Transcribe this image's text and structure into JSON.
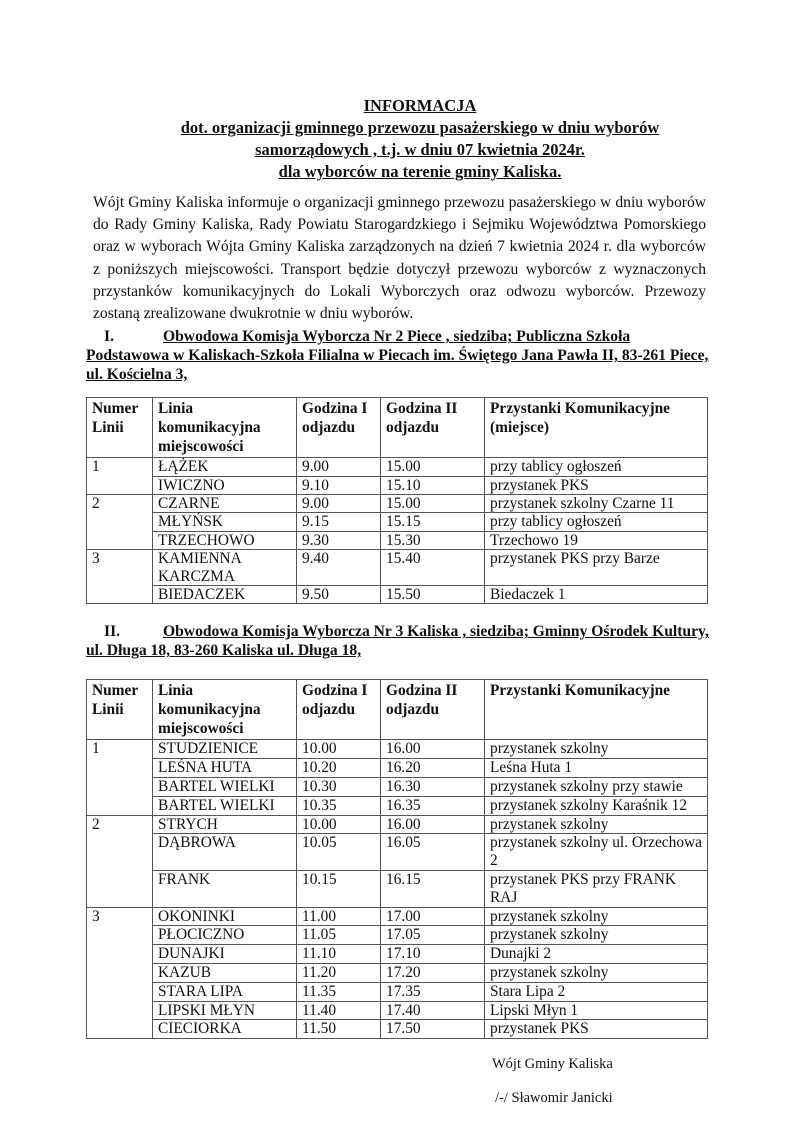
{
  "title": {
    "line1": "INFORMACJA",
    "line2": "dot. organizacji gminnego  przewozu pasażerskiego w dniu wyborów",
    "line3": "samorządowych , t.j. w dniu 07 kwietnia 2024r.",
    "line4": "dla wyborców na terenie gminy Kaliska."
  },
  "intro": "Wójt Gminy Kaliska informuje o organizacji gminnego  przewozu pasażerskiego w dniu wyborów do Rady Gminy Kaliska, Rady Powiatu Starogardzkiego i Sejmiku Województwa Pomorskiego oraz w wyborach Wójta Gminy Kaliska zarządzonych na dzień 7 kwietnia 2024 r. dla wyborców z poniższych miejscowości. Transport będzie dotyczył przewozu wyborców z wyznaczonych przystanków komunikacyjnych do Lokali Wyborczych oraz odwozu wyborców. Przewozy zostaną zrealizowane dwukrotnie w dniu wyborów.",
  "sections": [
    {
      "numeral": "I.",
      "heading": "Obwodowa Komisja Wyborcza Nr 2 Piece , siedziba; Publiczna Szkoła Podstawowa w Kaliskach-Szkoła Filialna w Piecach im. Świętego Jana Pawła II,  83-261 Piece, ul. Kościelna 3,",
      "headers": [
        "Numer Linii",
        "Linia komunikacyjna miejscowości",
        "Godzina I odjazdu",
        "Godzina II odjazdu",
        "Przystanki Komunikacyjne (miejsce)"
      ],
      "groups": [
        {
          "numer": "1",
          "rows": [
            [
              "ŁĄŻEK",
              "9.00",
              "15.00",
              "przy tablicy ogłoszeń"
            ],
            [
              "IWICZNO",
              "9.10",
              "15.10",
              "przystanek PKS"
            ]
          ]
        },
        {
          "numer": "2",
          "rows": [
            [
              "CZARNE",
              "9.00",
              "15.00",
              "przystanek szkolny Czarne 11"
            ],
            [
              "MŁYŃSK",
              "9.15",
              "15.15",
              "przy tablicy ogłoszeń"
            ],
            [
              "TRZECHOWO",
              "9.30",
              "15.30",
              "Trzechowo 19"
            ]
          ]
        },
        {
          "numer": "3",
          "rows": [
            [
              "KAMIENNA KARCZMA",
              "9.40",
              "15.40",
              "przystanek PKS przy Barze"
            ],
            [
              "BIEDACZEK",
              "9.50",
              "15.50",
              "Biedaczek 1"
            ]
          ]
        }
      ]
    },
    {
      "numeral": "II.",
      "heading": "Obwodowa Komisja Wyborcza Nr 3 Kaliska , siedziba; Gminny Ośrodek Kultury, ul. Długa 18,  83-260 Kaliska ul. Długa 18,",
      "headers": [
        "Numer Linii",
        "Linia komunikacyjna miejscowości",
        "Godzina I odjazdu",
        "Godzina II odjazdu",
        "Przystanki Komunikacyjne"
      ],
      "groups": [
        {
          "numer": "1",
          "rows": [
            [
              "STUDZIENICE",
              "10.00",
              "16.00",
              "przystanek szkolny"
            ],
            [
              "LEŚNA HUTA",
              "10.20",
              "16.20",
              "Leśna Huta 1"
            ],
            [
              "BARTEL WIELKI",
              "10.30",
              "16.30",
              "przystanek szkolny przy stawie"
            ],
            [
              "BARTEL WIELKI",
              "10.35",
              "16.35",
              "przystanek szkolny Karaśnik 12"
            ]
          ]
        },
        {
          "numer": "2",
          "rows": [
            [
              "STRYCH",
              "10.00",
              "16.00",
              "przystanek szkolny"
            ],
            [
              "DĄBROWA",
              "10.05",
              "16.05",
              "przystanek szkolny ul. Orzechowa 2"
            ],
            [
              "FRANK",
              "10.15",
              "16.15",
              "przystanek PKS przy FRANK RAJ"
            ]
          ]
        },
        {
          "numer": "3",
          "rows": [
            [
              "OKONINKI",
              "11.00",
              "17.00",
              "przystanek szkolny"
            ],
            [
              "PŁOCICZNO",
              "11.05",
              "17.05",
              "przystanek szkolny"
            ],
            [
              "DUNAJKI",
              "11.10",
              "17.10",
              "Dunajki 2"
            ],
            [
              "KAZUB",
              "11.20",
              "17.20",
              "przystanek szkolny"
            ],
            [
              "STARA LIPA",
              "11.35",
              "17.35",
              "Stara Lipa 2"
            ],
            [
              "LIPSKI MŁYN",
              "11.40",
              "17.40",
              "Lipski Młyn 1"
            ],
            [
              "CIECIORKA",
              "11.50",
              "17.50",
              "przystanek PKS"
            ]
          ]
        }
      ]
    }
  ],
  "signature": {
    "role": "Wójt Gminy Kaliska",
    "name": "/-/ Sławomir Janicki"
  }
}
